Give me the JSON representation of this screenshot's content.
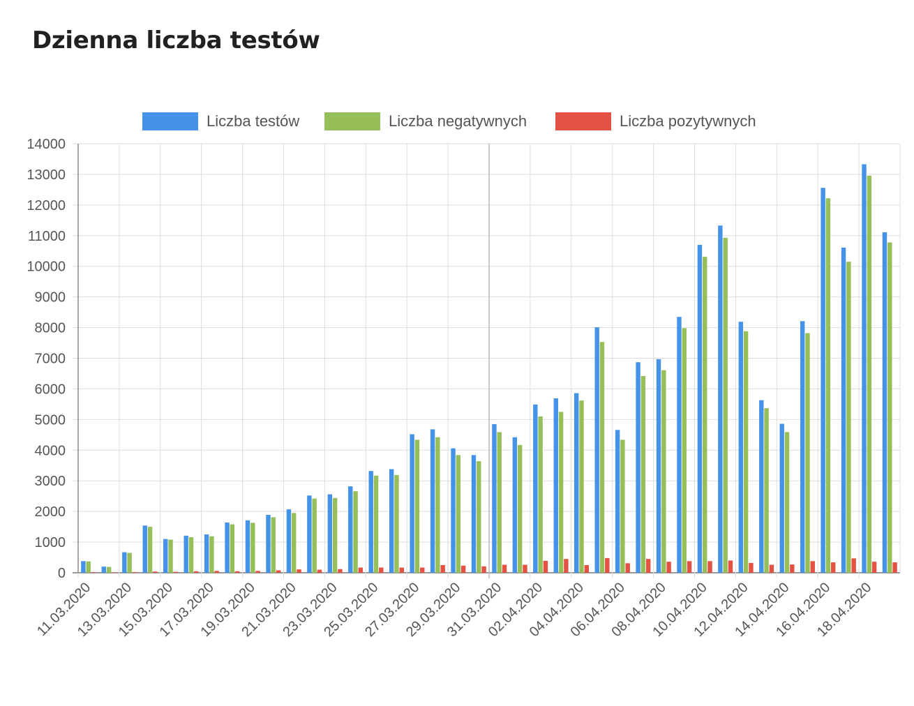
{
  "page": {
    "title": "Dzienna liczba testów"
  },
  "legend": [
    {
      "label": "Liczba testów",
      "color": "#4493e8"
    },
    {
      "label": "Liczba negatywnych",
      "color": "#96bf5a"
    },
    {
      "label": "Liczba pozytywnych",
      "color": "#e35243"
    }
  ],
  "chart_data": {
    "type": "bar",
    "title": "Dzienna liczba testów",
    "xlabel": "",
    "ylabel": "",
    "ylim": [
      0,
      14000
    ],
    "yticks": [
      0,
      1000,
      2000,
      3000,
      4000,
      5000,
      6000,
      7000,
      8000,
      9000,
      10000,
      11000,
      12000,
      13000,
      14000
    ],
    "grid": true,
    "legend_position": "top",
    "categories": [
      "11.03.2020",
      "12.03.2020",
      "13.03.2020",
      "14.03.2020",
      "15.03.2020",
      "16.03.2020",
      "17.03.2020",
      "18.03.2020",
      "19.03.2020",
      "20.03.2020",
      "21.03.2020",
      "22.03.2020",
      "23.03.2020",
      "24.03.2020",
      "25.03.2020",
      "26.03.2020",
      "27.03.2020",
      "28.03.2020",
      "29.03.2020",
      "30.03.2020",
      "31.03.2020",
      "01.04.2020",
      "02.04.2020",
      "03.04.2020",
      "04.04.2020",
      "05.04.2020",
      "06.04.2020",
      "07.04.2020",
      "08.04.2020",
      "09.04.2020",
      "10.04.2020",
      "11.04.2020",
      "12.04.2020",
      "13.04.2020",
      "14.04.2020",
      "15.04.2020",
      "16.04.2020",
      "17.04.2020",
      "18.04.2020",
      "19.04.2020"
    ],
    "tick_labels": [
      "11.03.2020",
      "13.03.2020",
      "15.03.2020",
      "17.03.2020",
      "19.03.2020",
      "21.03.2020",
      "23.03.2020",
      "25.03.2020",
      "27.03.2020",
      "29.03.2020",
      "31.03.2020",
      "02.04.2020",
      "04.04.2020",
      "06.04.2020",
      "08.04.2020",
      "10.04.2020",
      "12.04.2020",
      "14.04.2020",
      "16.04.2020",
      "18.04.2020"
    ],
    "series": [
      {
        "name": "Liczba testów",
        "color": "#4493e8",
        "values": [
          380,
          200,
          670,
          1540,
          1100,
          1210,
          1250,
          1640,
          1710,
          1890,
          2070,
          2520,
          2560,
          2820,
          3320,
          3380,
          4520,
          4680,
          4060,
          3840,
          4850,
          4420,
          5490,
          5690,
          5860,
          8010,
          4660,
          6870,
          6970,
          8350,
          10700,
          11330,
          8190,
          5630,
          4860,
          8210,
          12560,
          10610,
          13330,
          11110
        ]
      },
      {
        "name": "Liczba negatywnych",
        "color": "#96bf5a",
        "values": [
          370,
          190,
          650,
          1500,
          1080,
          1160,
          1190,
          1580,
          1630,
          1810,
          1950,
          2420,
          2440,
          2660,
          3170,
          3190,
          4340,
          4420,
          3840,
          3640,
          4590,
          4170,
          5100,
          5250,
          5620,
          7530,
          4340,
          6420,
          6610,
          7980,
          10310,
          10930,
          7880,
          5370,
          4590,
          7820,
          12220,
          10150,
          12960,
          10780
        ]
      },
      {
        "name": "Liczba pozytywnych",
        "color": "#e35243",
        "values": [
          20,
          10,
          20,
          40,
          30,
          50,
          60,
          50,
          60,
          80,
          110,
          100,
          120,
          170,
          170,
          170,
          170,
          250,
          230,
          210,
          260,
          260,
          390,
          450,
          250,
          480,
          310,
          450,
          360,
          380,
          380,
          400,
          320,
          260,
          270,
          380,
          340,
          470,
          360,
          340
        ]
      }
    ]
  }
}
